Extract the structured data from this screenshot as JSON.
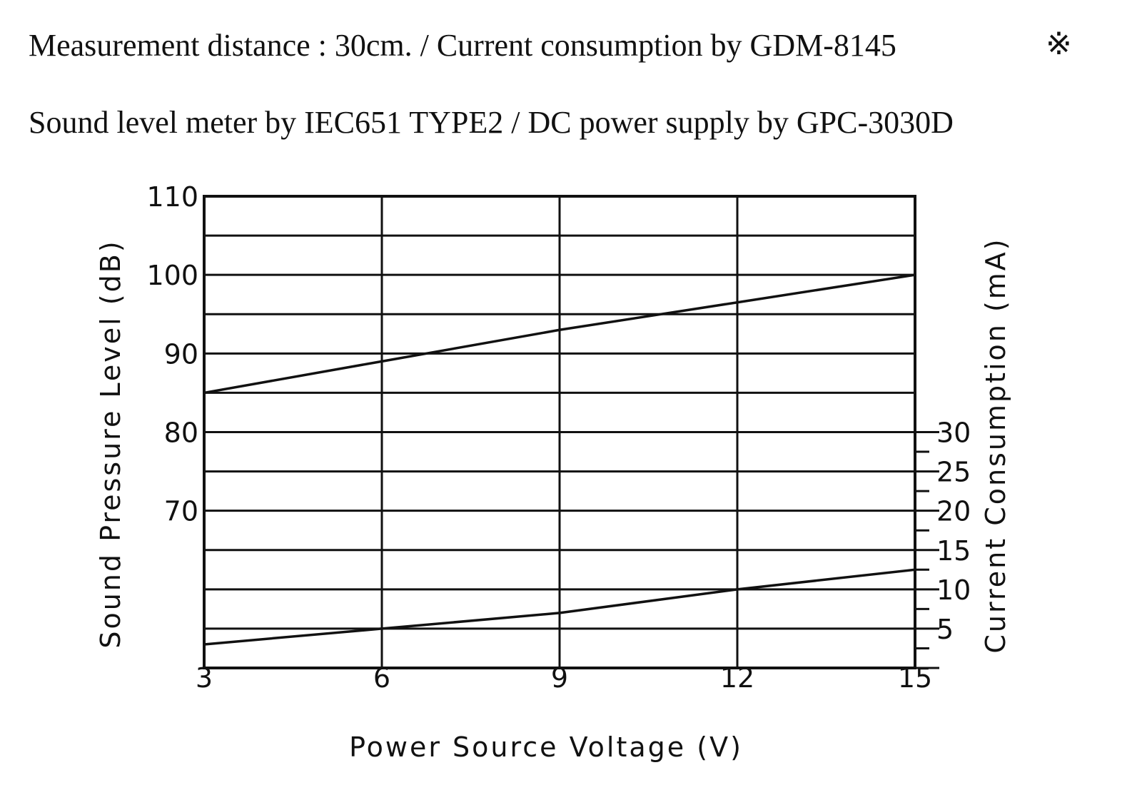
{
  "header": {
    "line1": "Measurement distance : 30cm. / Current consumption by GDM-8145",
    "ref_mark": "※",
    "line2": "Sound level meter by IEC651 TYPE2 / DC power supply by GPC-3030D"
  },
  "chart_data": {
    "type": "line",
    "title": "",
    "xlabel": "Power Source Voltage (V)",
    "ylabel": "Sound Pressure Level (dB)",
    "y2label": "Current Consumption (mA)",
    "xlim": [
      3,
      15
    ],
    "ylim": [
      50,
      110
    ],
    "y2lim": [
      0,
      30
    ],
    "xticks": [
      3,
      6,
      9,
      12,
      15
    ],
    "yticks": [
      110,
      100,
      90,
      80,
      70
    ],
    "y2ticks": [
      30,
      25,
      20,
      15,
      10,
      5
    ],
    "grid": true,
    "line_color": "#111111",
    "series": [
      {
        "axis": "left",
        "x": [
          3,
          6,
          9,
          12,
          15
        ],
        "values": [
          85,
          89,
          93,
          96.5,
          100
        ]
      },
      {
        "axis": "right",
        "x": [
          3,
          6,
          9,
          12,
          15
        ],
        "values": [
          3,
          5,
          7,
          10,
          12.5
        ]
      }
    ]
  }
}
